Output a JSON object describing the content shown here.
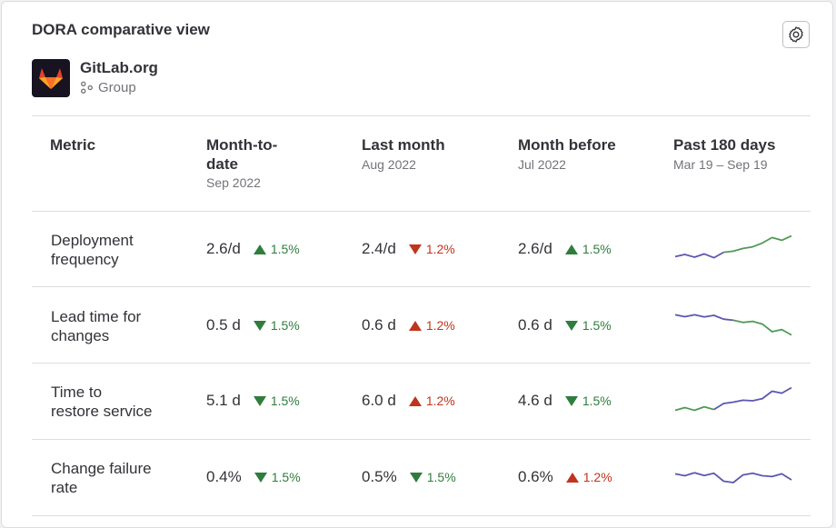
{
  "panel": {
    "title": "DORA comparative view",
    "settings_icon": "gear-icon"
  },
  "group": {
    "name": "GitLab.org",
    "type_label": "Group",
    "avatar_icon": "gitlab-tanuki-icon",
    "type_icon": "group-icon"
  },
  "columns": {
    "metric": "Metric",
    "mtd": {
      "label": "Month-to-date",
      "sub": "Sep 2022"
    },
    "last": {
      "label": "Last month",
      "sub": "Aug 2022"
    },
    "before": {
      "label": "Month before",
      "sub": "Jul 2022"
    },
    "past": {
      "label": "Past 180 days",
      "sub": "Mar 19 – Sep 19"
    }
  },
  "colors": {
    "positive": "#2f7d3d",
    "negative": "#c0341d",
    "spark_blue": "#5b57b0",
    "spark_green": "#4f9a54"
  },
  "rows": [
    {
      "name_line1": "Deployment",
      "name_line2": "frequency",
      "mtd": {
        "value": "2.6/d",
        "change": "1.5%",
        "dir": "up",
        "good": true
      },
      "last": {
        "value": "2.4/d",
        "change": "1.2%",
        "dir": "down",
        "good": false
      },
      "before": {
        "value": "2.6/d",
        "change": "1.5%",
        "dir": "up",
        "good": true
      },
      "spark": [
        0.22,
        0.3,
        0.2,
        0.32,
        0.18,
        0.38,
        0.42,
        0.52,
        0.58,
        0.72,
        0.92,
        0.82,
        0.98
      ],
      "spark_split": 5
    },
    {
      "name_line1": "Lead time for",
      "name_line2": "changes",
      "mtd": {
        "value": "0.5 d",
        "change": "1.5%",
        "dir": "down",
        "good": true
      },
      "last": {
        "value": "0.6 d",
        "change": "1.2%",
        "dir": "up",
        "good": false
      },
      "before": {
        "value": "0.6 d",
        "change": "1.5%",
        "dir": "down",
        "good": true
      },
      "spark": [
        0.92,
        0.85,
        0.92,
        0.84,
        0.9,
        0.76,
        0.72,
        0.64,
        0.68,
        0.58,
        0.3,
        0.38,
        0.18
      ],
      "spark_split": 6
    },
    {
      "name_line1": "Time to",
      "name_line2": "restore service",
      "mtd": {
        "value": "5.1 d",
        "change": "1.5%",
        "dir": "down",
        "good": true
      },
      "last": {
        "value": "6.0 d",
        "change": "1.2%",
        "dir": "up",
        "good": false
      },
      "before": {
        "value": "4.6 d",
        "change": "1.5%",
        "dir": "down",
        "good": true
      },
      "spark": [
        0.15,
        0.25,
        0.15,
        0.28,
        0.18,
        0.4,
        0.45,
        0.52,
        0.5,
        0.58,
        0.85,
        0.78,
        0.98
      ],
      "spark_split": 4
    },
    {
      "name_line1": "Change failure",
      "name_line2": "rate",
      "mtd": {
        "value": "0.4%",
        "change": "1.5%",
        "dir": "down",
        "good": true
      },
      "last": {
        "value": "0.5%",
        "change": "1.5%",
        "dir": "down",
        "good": true
      },
      "before": {
        "value": "0.6%",
        "change": "1.2%",
        "dir": "up",
        "good": false
      },
      "spark": [
        0.62,
        0.55,
        0.66,
        0.56,
        0.64,
        0.35,
        0.3,
        0.58,
        0.64,
        0.55,
        0.52,
        0.62,
        0.4
      ],
      "spark_split": 13
    }
  ]
}
